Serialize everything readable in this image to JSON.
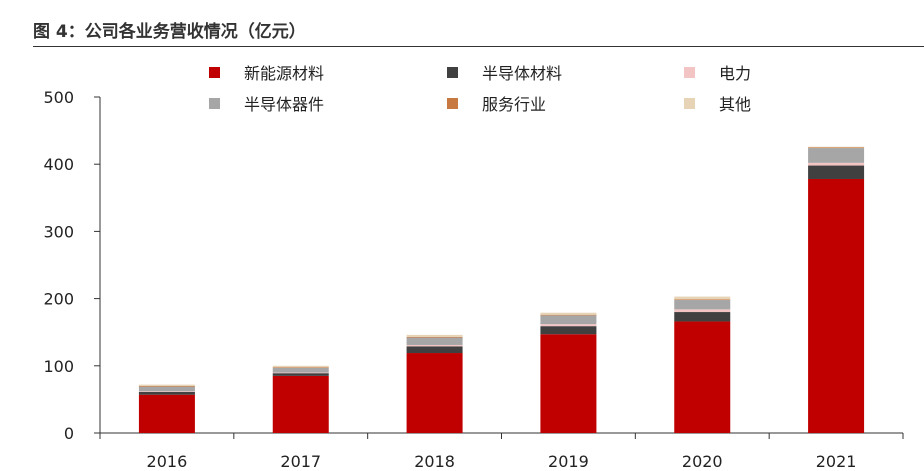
{
  "figure_title": "图 4：公司各业务营收情况（亿元）",
  "chart_data": {
    "type": "bar",
    "stacked": true,
    "title": "图 4：公司各业务营收情况（亿元）",
    "xlabel": "",
    "ylabel": "",
    "categories": [
      "2016",
      "2017",
      "2018",
      "2019",
      "2020",
      "2021"
    ],
    "ylim": [
      0,
      500
    ],
    "yticks": [
      0,
      100,
      200,
      300,
      400,
      500
    ],
    "grid": false,
    "legend_position": "top",
    "series": [
      {
        "name": "新能源材料",
        "color": "#C00000",
        "values": [
          57,
          85,
          119,
          147,
          166,
          378
        ]
      },
      {
        "name": "半导体材料",
        "color": "#404040",
        "values": [
          4,
          4,
          10,
          12,
          14,
          20
        ]
      },
      {
        "name": "电力",
        "color": "#F2C4C4",
        "values": [
          1,
          1,
          2,
          3,
          4,
          4
        ]
      },
      {
        "name": "半导体器件",
        "color": "#A6A6A6",
        "values": [
          7,
          7,
          11,
          13,
          14,
          22
        ]
      },
      {
        "name": "服务行业",
        "color": "#C87941",
        "values": [
          1,
          1,
          1,
          1,
          1,
          1
        ]
      },
      {
        "name": "其他",
        "color": "#E7D3B5",
        "values": [
          2,
          2,
          3,
          3,
          4,
          1
        ]
      }
    ]
  }
}
